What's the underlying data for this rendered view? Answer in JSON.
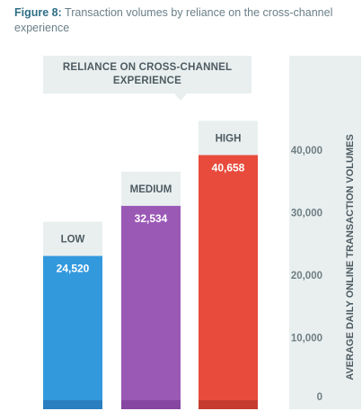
{
  "figure_caption": {
    "lead": "Figure 8:",
    "text": " Transaction volumes by reliance on the cross-channel experience"
  },
  "legend_title": "RELIANCE ON CROSS-CHANNEL EXPERIENCE",
  "chart_data": {
    "type": "bar",
    "title": "",
    "categories": [
      "LOW",
      "MEDIUM",
      "HIGH"
    ],
    "values": [
      24520,
      32534,
      40658
    ],
    "value_labels": [
      "24,520",
      "32,534",
      "40,658"
    ],
    "colors": [
      "#3399dd",
      "#9b59b6",
      "#e84b3c"
    ],
    "base_colors": [
      "#2a7fc0",
      "#8746a2",
      "#c63d30"
    ],
    "xlabel": "",
    "ylabel": "AVERAGE DAILY ONLINE TRANSACTION VOLUMES",
    "ylim": [
      0,
      40000
    ],
    "y_ticks": [
      0,
      10000,
      20000,
      30000,
      40000
    ],
    "y_tick_labels": [
      "0",
      "10,000",
      "20,000",
      "30,000",
      "40,000"
    ],
    "grid": false,
    "colors_theme": {
      "tile": "#e9efef",
      "text_dark": "#4d5b62",
      "axis_text": "#6f7e84",
      "value_text": "#ffffff"
    }
  }
}
